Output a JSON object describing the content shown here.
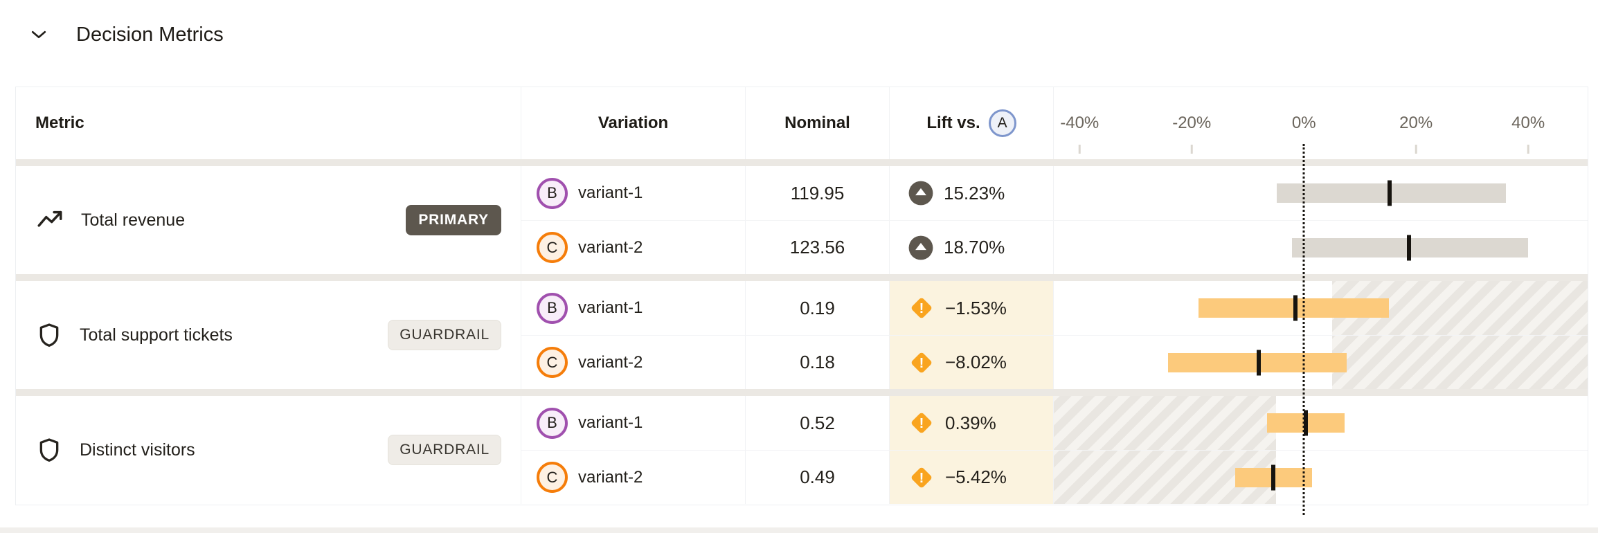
{
  "section": {
    "title": "Decision Metrics",
    "collapse_icon": "chevron-down-icon"
  },
  "table": {
    "header": {
      "metric": "Metric",
      "variation": "Variation",
      "nominal": "Nominal",
      "lift_prefix": "Lift vs.",
      "baseline_badge": "A"
    },
    "axis": {
      "min": -44.6,
      "max": 50.6,
      "zero": 0,
      "ticks": [
        {
          "value": -40,
          "label": "-40%"
        },
        {
          "value": -20,
          "label": "-20%"
        },
        {
          "value": 0,
          "label": "0%"
        },
        {
          "value": 20,
          "label": "20%"
        },
        {
          "value": 40,
          "label": "40%"
        }
      ]
    },
    "groups": [
      {
        "metric": "Total revenue",
        "icon": "trend-line-icon",
        "badge": {
          "label": "PRIMARY",
          "style": "primary"
        },
        "hatch": null,
        "rows": [
          {
            "variation_badge": "B",
            "variation": "variant-1",
            "nominal": "119.95",
            "lift": "15.23%",
            "lift_icon": "arrow-up-circle-icon",
            "tone": "neutral",
            "ci": {
              "low": -4.9,
              "center": 15.23,
              "high": 36.0
            }
          },
          {
            "variation_badge": "C",
            "variation": "variant-2",
            "nominal": "123.56",
            "lift": "18.70%",
            "lift_icon": "arrow-up-circle-icon",
            "tone": "neutral",
            "ci": {
              "low": -2.1,
              "center": 18.7,
              "high": 40.0
            }
          }
        ]
      },
      {
        "metric": "Total support tickets",
        "icon": "shield-icon",
        "badge": {
          "label": "GUARDRAIL",
          "style": "guardrail"
        },
        "hatch": {
          "from": 5,
          "to": "max"
        },
        "rows": [
          {
            "variation_badge": "B",
            "variation": "variant-1",
            "nominal": "0.19",
            "lift": "−1.53%",
            "lift_icon": "warning-diamond-icon",
            "tone": "warning",
            "ci": {
              "low": -18.8,
              "center": -1.53,
              "high": 15.2
            }
          },
          {
            "variation_badge": "C",
            "variation": "variant-2",
            "nominal": "0.18",
            "lift": "−8.02%",
            "lift_icon": "warning-diamond-icon",
            "tone": "warning",
            "ci": {
              "low": -24.2,
              "center": -8.02,
              "high": 7.6
            }
          }
        ]
      },
      {
        "metric": "Distinct visitors",
        "icon": "shield-icon",
        "badge": {
          "label": "GUARDRAIL",
          "style": "guardrail"
        },
        "hatch": {
          "from": "min",
          "to": -5
        },
        "rows": [
          {
            "variation_badge": "B",
            "variation": "variant-1",
            "nominal": "0.52",
            "lift": "0.39%",
            "lift_icon": "warning-diamond-icon",
            "tone": "warning",
            "ci": {
              "low": -6.6,
              "center": 0.39,
              "high": 7.2
            }
          },
          {
            "variation_badge": "C",
            "variation": "variant-2",
            "nominal": "0.49",
            "lift": "−5.42%",
            "lift_icon": "warning-diamond-icon",
            "tone": "warning",
            "ci": {
              "low": -12.3,
              "center": -5.42,
              "high": 1.4
            }
          }
        ]
      }
    ]
  },
  "colors": {
    "baseline_badge_border": "#7e96cc",
    "baseline_badge_fill": "#eef1f8",
    "variant_b_border": "#a050ae",
    "variant_b_fill": "#f8eef9",
    "variant_c_border": "#f57d0a",
    "variant_c_fill": "#fdf1e4",
    "primary_badge_bg": "#5d574e",
    "guardrail_badge_bg": "#efece7",
    "bar_neutral": "#dcd8d1",
    "bar_warning": "#fcca7c",
    "warning_diamond": "#f9a41f",
    "lift_up_circle": "#5d574e",
    "warning_cell_bg": "#fbf3df",
    "group_separator": "#ebe8e3"
  },
  "chart_data": {
    "type": "interval",
    "title": "Lift vs. A confidence intervals",
    "x_axis": {
      "unit": "percent",
      "ticks": [
        -40,
        -20,
        0,
        20,
        40
      ],
      "range": [
        -44.6,
        50.6
      ],
      "zero_line": "dotted"
    },
    "guardrail_threshold_pct": 5,
    "series": [
      {
        "metric": "Total revenue",
        "variation": "variant-1",
        "lift_pct": 15.23,
        "ci_low_pct": -4.9,
        "ci_high_pct": 36.0
      },
      {
        "metric": "Total revenue",
        "variation": "variant-2",
        "lift_pct": 18.7,
        "ci_low_pct": -2.1,
        "ci_high_pct": 40.0
      },
      {
        "metric": "Total support tickets",
        "variation": "variant-1",
        "lift_pct": -1.53,
        "ci_low_pct": -18.8,
        "ci_high_pct": 15.2
      },
      {
        "metric": "Total support tickets",
        "variation": "variant-2",
        "lift_pct": -8.02,
        "ci_low_pct": -24.2,
        "ci_high_pct": 7.6
      },
      {
        "metric": "Distinct visitors",
        "variation": "variant-1",
        "lift_pct": 0.39,
        "ci_low_pct": -6.6,
        "ci_high_pct": 7.2
      },
      {
        "metric": "Distinct visitors",
        "variation": "variant-2",
        "lift_pct": -5.42,
        "ci_low_pct": -12.3,
        "ci_high_pct": 1.4
      }
    ]
  }
}
